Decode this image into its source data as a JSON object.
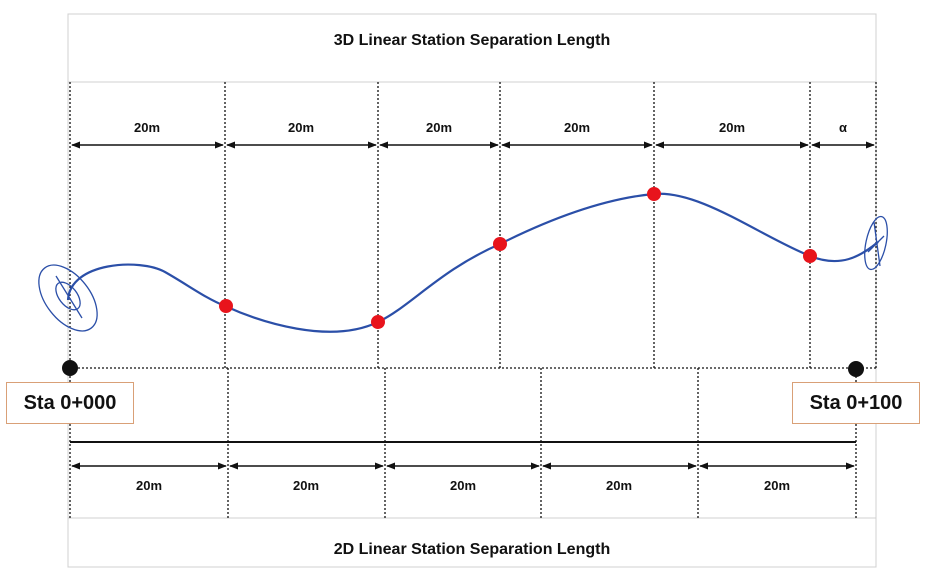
{
  "diagram": {
    "title_top": "3D Linear Station Separation Length",
    "title_bottom": "2D Linear Station Separation Length",
    "station_start_label": "Sta 0+000",
    "station_end_label": "Sta 0+100",
    "segments_3d": [
      {
        "label": "20m"
      },
      {
        "label": "20m"
      },
      {
        "label": "20m"
      },
      {
        "label": "20m"
      },
      {
        "label": "20m"
      },
      {
        "label": "α"
      }
    ],
    "segments_2d": [
      {
        "label": "20m"
      },
      {
        "label": "20m"
      },
      {
        "label": "20m"
      },
      {
        "label": "20m"
      },
      {
        "label": "20m"
      }
    ],
    "colors": {
      "curve": "#2b4fa8",
      "station_point": "#e8141c",
      "endpoint": "#111111",
      "frame": "#d0d0d0",
      "label_border": "#d9a077"
    }
  }
}
